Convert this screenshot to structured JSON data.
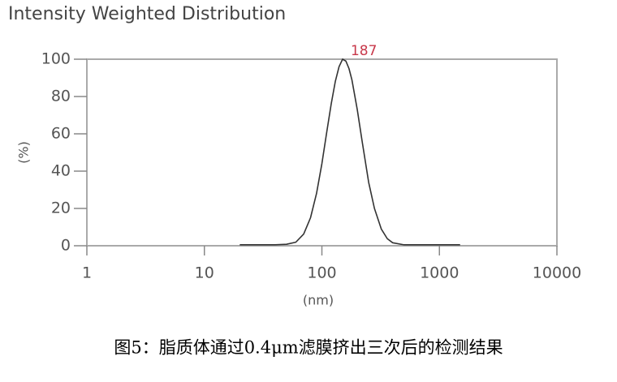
{
  "chart_data": {
    "type": "line",
    "title": "Intensity Weighted Distribution",
    "x_label": "(nm)",
    "y_label": "(%)",
    "peak_label": "187",
    "x": [
      20,
      30,
      40,
      50,
      60,
      70,
      80,
      90,
      100,
      110,
      120,
      130,
      140,
      150,
      160,
      170,
      180,
      200,
      220,
      250,
      280,
      320,
      360,
      400,
      500,
      700,
      1000,
      1500
    ],
    "values": [
      0.5,
      0.5,
      0.5,
      0.8,
      1.9,
      6.3,
      15,
      28,
      44,
      61,
      76,
      88,
      96,
      100,
      99,
      95,
      89,
      73,
      56,
      34,
      20,
      9,
      3.8,
      1.6,
      0.5,
      0.5,
      0.5,
      0.5
    ],
    "color": "#333333",
    "log_x": true,
    "xlim": [
      1,
      10000
    ],
    "xticks": [
      1,
      10,
      100,
      1000,
      10000
    ],
    "ylim": [
      0,
      100
    ],
    "yticks": [
      0,
      20,
      40,
      60,
      80,
      100
    ]
  },
  "caption": "图5：脂质体通过0.4μm滤膜挤出三次后的检测结果"
}
